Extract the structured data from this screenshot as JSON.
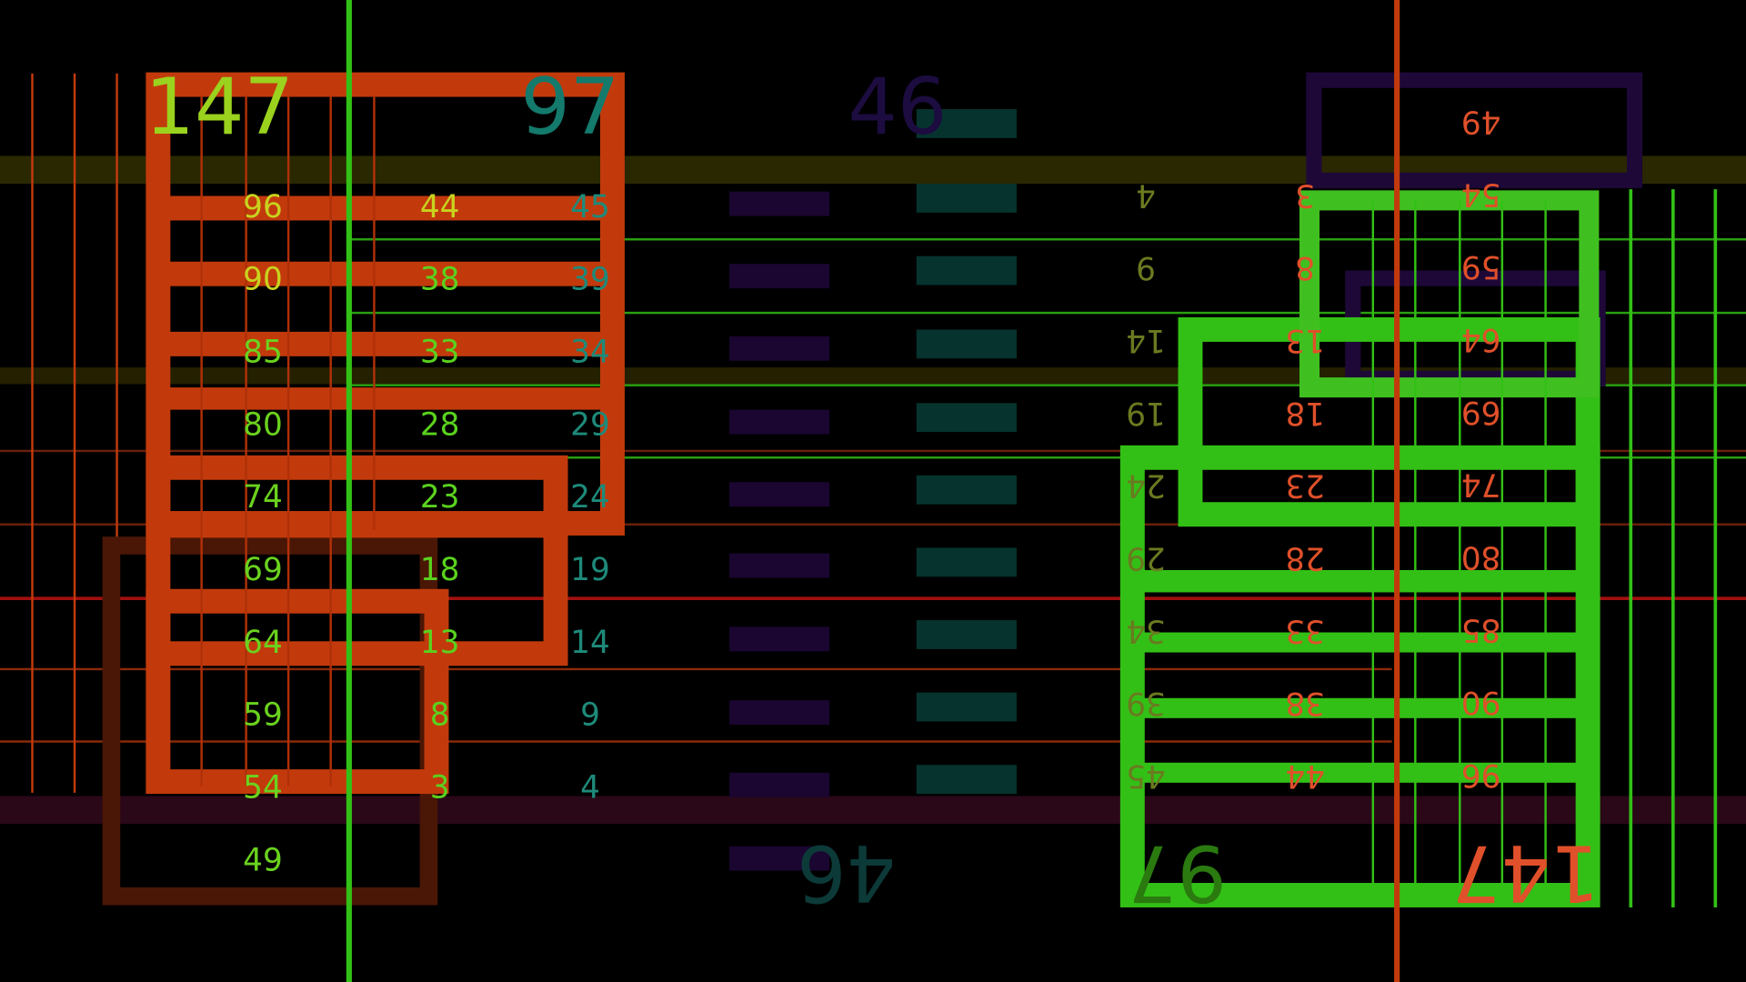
{
  "colors": {
    "orange": "#c23a0c",
    "green": "#33c016",
    "purple": "#1a0630",
    "teal": "#06332e",
    "olive": "#2a2800",
    "yellow_green": "#b4d61e",
    "teal_text": "#137a6c"
  },
  "left": {
    "big_left": "147",
    "big_right": "97",
    "col1": [
      "96",
      "90",
      "85",
      "80",
      "74",
      "69",
      "64",
      "59",
      "54",
      "49"
    ],
    "col2": [
      "44",
      "38",
      "33",
      "28",
      "23",
      "18",
      "13",
      "8",
      "3"
    ],
    "col3": [
      "45",
      "39",
      "34",
      "29",
      "24",
      "19",
      "14",
      "9",
      "4"
    ]
  },
  "middle": {
    "top_label": "46",
    "bottom_label": "46"
  },
  "right": {
    "big_left": "97",
    "big_right": "147",
    "col1": [
      "4",
      "9",
      "14",
      "19",
      "24",
      "29",
      "34",
      "39",
      "45"
    ],
    "col2": [
      "3",
      "8",
      "13",
      "18",
      "23",
      "28",
      "33",
      "38",
      "44"
    ],
    "col3": [
      "49",
      "54",
      "59",
      "64",
      "69",
      "74",
      "80",
      "85",
      "90",
      "96"
    ]
  }
}
